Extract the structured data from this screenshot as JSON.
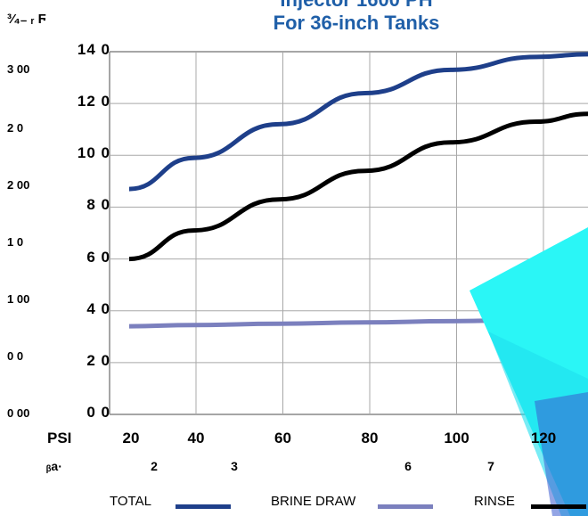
{
  "title_line1": "Injector 1600 PH",
  "title_line2": "For 36-inch Tanks",
  "corner_label": "³⁄₄₋ ᵣ Ϝ",
  "left_labels": [
    "3 00",
    "2  0",
    "2 00",
    "1  0",
    "1 00",
    "0  0",
    "0 00"
  ],
  "bottom_labels": {
    "prefix": "ᵦa·",
    "numbers": [
      "2",
      "3",
      "6",
      "7"
    ]
  },
  "chart_data": {
    "type": "line",
    "xlabel": "PSI",
    "ylabel": "",
    "xlim": [
      20,
      132
    ],
    "ylim": [
      0,
      140
    ],
    "x_ticks": [
      "20",
      "40",
      "60",
      "80",
      "100",
      "120"
    ],
    "y_ticks": [
      "0 0",
      "2 0",
      "4 0",
      "6 0",
      "8 0",
      "10 0",
      "12 0",
      "14 0"
    ],
    "grid": true,
    "legend_position": "bottom",
    "series": [
      {
        "name": "TOTAL",
        "color": "#1e3f8a",
        "x": [
          25,
          40,
          60,
          80,
          100,
          120,
          132
        ],
        "y": [
          87,
          99,
          112,
          124,
          133,
          138,
          139
        ]
      },
      {
        "name": "BRINE DRAW",
        "color": "#7b80be",
        "x": [
          25,
          40,
          60,
          80,
          100,
          120,
          132
        ],
        "y": [
          34,
          34.5,
          35,
          35.5,
          36,
          36.5,
          37
        ]
      },
      {
        "name": "RINSE",
        "color": "#000000",
        "x": [
          25,
          40,
          60,
          80,
          100,
          120,
          132
        ],
        "y": [
          60,
          71,
          83,
          94,
          105,
          113,
          116
        ]
      }
    ]
  }
}
